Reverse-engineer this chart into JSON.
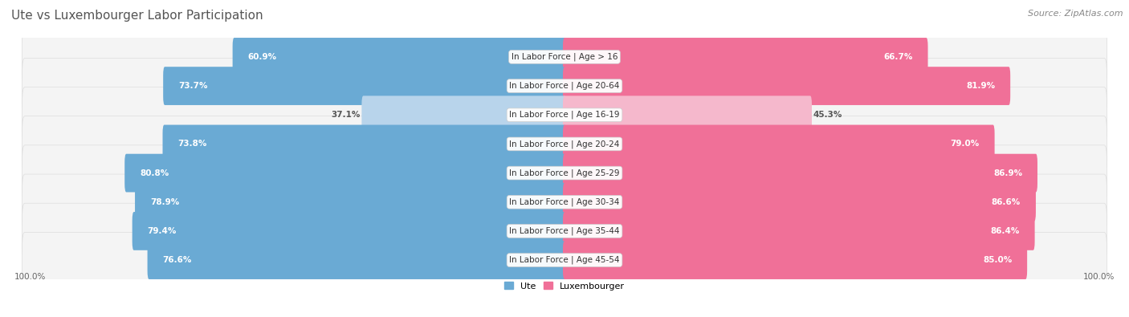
{
  "title": "Ute vs Luxembourger Labor Participation",
  "source": "Source: ZipAtlas.com",
  "categories": [
    "In Labor Force | Age > 16",
    "In Labor Force | Age 20-64",
    "In Labor Force | Age 16-19",
    "In Labor Force | Age 20-24",
    "In Labor Force | Age 25-29",
    "In Labor Force | Age 30-34",
    "In Labor Force | Age 35-44",
    "In Labor Force | Age 45-54"
  ],
  "ute_values": [
    60.9,
    73.7,
    37.1,
    73.8,
    80.8,
    78.9,
    79.4,
    76.6
  ],
  "lux_values": [
    66.7,
    81.9,
    45.3,
    79.0,
    86.9,
    86.6,
    86.4,
    85.0
  ],
  "ute_color": "#6aaad4",
  "ute_color_light": "#b8d4eb",
  "lux_color": "#f07098",
  "lux_color_light": "#f5b8cc",
  "label_ute": "Ute",
  "label_lux": "Luxembourger",
  "bg_color": "#ffffff",
  "row_bg": "#f2f2f2",
  "row_bg_alt": "#e8e8e8",
  "axis_label": "100.0%",
  "max_val": 100.0,
  "title_fontsize": 11,
  "source_fontsize": 8,
  "cat_fontsize": 7.5,
  "value_fontsize": 7.5,
  "axis_fontsize": 7.5
}
